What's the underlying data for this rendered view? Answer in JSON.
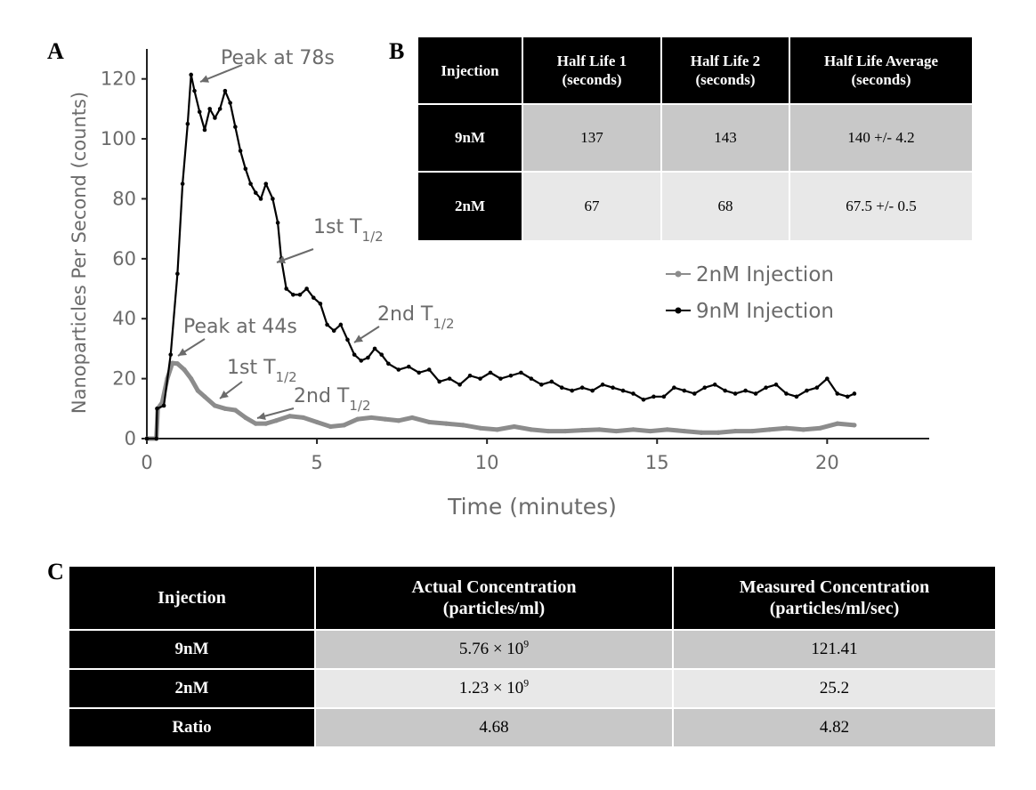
{
  "chart_data": {
    "type": "line",
    "title": "",
    "xlabel": "Time (minutes)",
    "ylabel": "Nanoparticles Per Second (counts)",
    "xlim": [
      0,
      23
    ],
    "ylim": [
      0,
      130
    ],
    "xticks": [
      0,
      5,
      10,
      15,
      20
    ],
    "yticks": [
      0,
      20,
      40,
      60,
      80,
      100,
      120
    ],
    "legend_position": "right-center",
    "series": [
      {
        "name": "2nM Injection",
        "color": "#8c8c8c",
        "points": [
          [
            0,
            0
          ],
          [
            0.28,
            0
          ],
          [
            0.32,
            10
          ],
          [
            0.45,
            12
          ],
          [
            0.6,
            20
          ],
          [
            0.75,
            25.2
          ],
          [
            0.9,
            25
          ],
          [
            1.1,
            23
          ],
          [
            1.3,
            20
          ],
          [
            1.5,
            16
          ],
          [
            1.7,
            14
          ],
          [
            2.0,
            11
          ],
          [
            2.3,
            10
          ],
          [
            2.6,
            9.5
          ],
          [
            2.9,
            7
          ],
          [
            3.2,
            5
          ],
          [
            3.5,
            5
          ],
          [
            3.8,
            6
          ],
          [
            4.2,
            7.5
          ],
          [
            4.6,
            7
          ],
          [
            5.0,
            5.5
          ],
          [
            5.4,
            4
          ],
          [
            5.8,
            4.5
          ],
          [
            6.2,
            6.5
          ],
          [
            6.6,
            7
          ],
          [
            7.0,
            6.5
          ],
          [
            7.4,
            6
          ],
          [
            7.8,
            7
          ],
          [
            8.3,
            5.5
          ],
          [
            8.8,
            5
          ],
          [
            9.3,
            4.5
          ],
          [
            9.8,
            3.5
          ],
          [
            10.3,
            3
          ],
          [
            10.8,
            4
          ],
          [
            11.3,
            3
          ],
          [
            11.8,
            2.5
          ],
          [
            12.3,
            2.5
          ],
          [
            12.8,
            2.8
          ],
          [
            13.3,
            3
          ],
          [
            13.8,
            2.5
          ],
          [
            14.3,
            3
          ],
          [
            14.8,
            2.5
          ],
          [
            15.3,
            3
          ],
          [
            15.8,
            2.5
          ],
          [
            16.3,
            2
          ],
          [
            16.8,
            2
          ],
          [
            17.3,
            2.5
          ],
          [
            17.8,
            2.5
          ],
          [
            18.3,
            3
          ],
          [
            18.8,
            3.5
          ],
          [
            19.3,
            3
          ],
          [
            19.8,
            3.5
          ],
          [
            20.3,
            5
          ],
          [
            20.8,
            4.5
          ]
        ]
      },
      {
        "name": "9nM Injection",
        "color": "#000000",
        "points": [
          [
            0,
            0
          ],
          [
            0.28,
            0
          ],
          [
            0.3,
            10
          ],
          [
            0.5,
            11
          ],
          [
            0.7,
            28
          ],
          [
            0.9,
            55
          ],
          [
            1.05,
            85
          ],
          [
            1.2,
            105
          ],
          [
            1.3,
            121.4
          ],
          [
            1.4,
            116
          ],
          [
            1.55,
            109
          ],
          [
            1.7,
            103
          ],
          [
            1.85,
            110
          ],
          [
            2.0,
            107
          ],
          [
            2.15,
            110
          ],
          [
            2.3,
            116
          ],
          [
            2.45,
            112
          ],
          [
            2.6,
            104
          ],
          [
            2.75,
            96
          ],
          [
            2.9,
            90
          ],
          [
            3.05,
            85
          ],
          [
            3.2,
            82
          ],
          [
            3.35,
            80
          ],
          [
            3.5,
            85
          ],
          [
            3.7,
            80
          ],
          [
            3.85,
            72
          ],
          [
            3.95,
            60
          ],
          [
            4.1,
            50
          ],
          [
            4.3,
            48
          ],
          [
            4.5,
            48
          ],
          [
            4.7,
            50
          ],
          [
            4.9,
            47
          ],
          [
            5.1,
            45
          ],
          [
            5.3,
            38
          ],
          [
            5.5,
            36
          ],
          [
            5.7,
            38
          ],
          [
            5.9,
            33
          ],
          [
            6.1,
            28
          ],
          [
            6.3,
            26
          ],
          [
            6.5,
            27
          ],
          [
            6.7,
            30
          ],
          [
            6.9,
            28
          ],
          [
            7.1,
            25
          ],
          [
            7.4,
            23
          ],
          [
            7.7,
            24
          ],
          [
            8.0,
            22
          ],
          [
            8.3,
            23
          ],
          [
            8.6,
            19
          ],
          [
            8.9,
            20
          ],
          [
            9.2,
            18
          ],
          [
            9.5,
            21
          ],
          [
            9.8,
            20
          ],
          [
            10.1,
            22
          ],
          [
            10.4,
            20
          ],
          [
            10.7,
            21
          ],
          [
            11.0,
            22
          ],
          [
            11.3,
            20
          ],
          [
            11.6,
            18
          ],
          [
            11.9,
            19
          ],
          [
            12.2,
            17
          ],
          [
            12.5,
            16
          ],
          [
            12.8,
            17
          ],
          [
            13.1,
            16
          ],
          [
            13.4,
            18
          ],
          [
            13.7,
            17
          ],
          [
            14.0,
            16
          ],
          [
            14.3,
            15
          ],
          [
            14.6,
            13
          ],
          [
            14.9,
            14
          ],
          [
            15.2,
            14
          ],
          [
            15.5,
            17
          ],
          [
            15.8,
            16
          ],
          [
            16.1,
            15
          ],
          [
            16.4,
            17
          ],
          [
            16.7,
            18
          ],
          [
            17.0,
            16
          ],
          [
            17.3,
            15
          ],
          [
            17.6,
            16
          ],
          [
            17.9,
            15
          ],
          [
            18.2,
            17
          ],
          [
            18.5,
            18
          ],
          [
            18.8,
            15
          ],
          [
            19.1,
            14
          ],
          [
            19.4,
            16
          ],
          [
            19.7,
            17
          ],
          [
            20.0,
            20
          ],
          [
            20.3,
            15
          ],
          [
            20.6,
            14
          ],
          [
            20.8,
            15
          ]
        ]
      }
    ],
    "annotations": [
      {
        "text": "Peak at 78s",
        "x": 1.3,
        "y": 121.4,
        "series": "9nM Injection"
      },
      {
        "text": "1st T",
        "sub": "1/2",
        "x": 3.9,
        "y": 60,
        "series": "9nM Injection"
      },
      {
        "text": "2nd T",
        "sub": "1/2",
        "x": 6.3,
        "y": 33,
        "series": "9nM Injection"
      },
      {
        "text": "Peak at 44s",
        "x": 0.85,
        "y": 27,
        "series": "2nM Injection"
      },
      {
        "text": "1st T",
        "sub": "1/2",
        "x": 2.15,
        "y": 13,
        "series": "2nM Injection"
      },
      {
        "text": "2nd T",
        "sub": "1/2",
        "x": 3.3,
        "y": 6.5,
        "series": "2nM Injection"
      }
    ]
  },
  "panels": {
    "a": "A",
    "b": "B",
    "c": "C"
  },
  "table_b": {
    "headers": [
      {
        "line1": "Injection",
        "line2": ""
      },
      {
        "line1": "Half Life 1",
        "line2": "(seconds)"
      },
      {
        "line1": "Half Life 2",
        "line2": "(seconds)"
      },
      {
        "line1": "Half Life Average",
        "line2": "(seconds)"
      }
    ],
    "rows": [
      {
        "injection": "9nM",
        "hl1": "137",
        "hl2": "143",
        "avg": "140 +/- 4.2"
      },
      {
        "injection": "2nM",
        "hl1": "67",
        "hl2": "68",
        "avg": "67.5  +/- 0.5"
      }
    ]
  },
  "table_c": {
    "headers": [
      {
        "line1": "Injection",
        "line2": ""
      },
      {
        "line1": "Actual Concentration",
        "line2": "(particles/ml)"
      },
      {
        "line1": "Measured Concentration",
        "line2": "(particles/ml/sec)"
      }
    ],
    "rows": [
      {
        "injection": "9nM",
        "actual_base": "5.76 × 10",
        "actual_exp": "9",
        "measured": "121.41"
      },
      {
        "injection": "2nM",
        "actual_base": "1.23 × 10",
        "actual_exp": "9",
        "measured": "25.2"
      },
      {
        "injection": "Ratio",
        "actual_base": "4.68",
        "actual_exp": "",
        "measured": "4.82"
      }
    ]
  }
}
